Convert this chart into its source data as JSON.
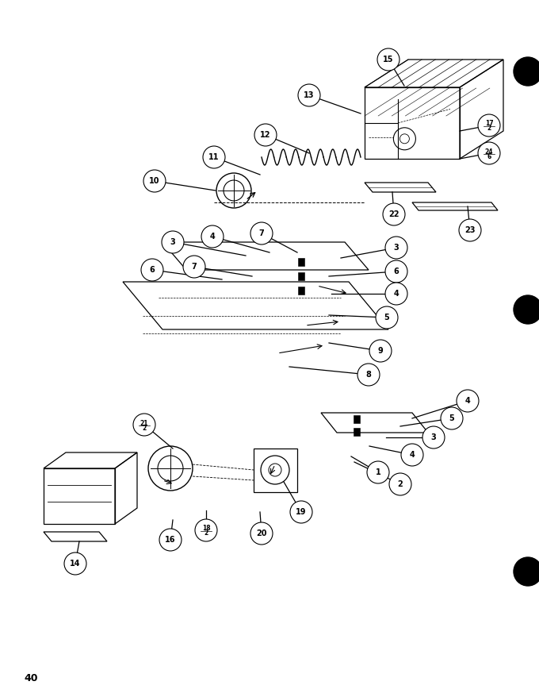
{
  "page_number": "40",
  "bg_color": "#ffffff",
  "lc": "#000000",
  "fig_width": 6.8,
  "fig_height": 8.73,
  "dpi": 100
}
